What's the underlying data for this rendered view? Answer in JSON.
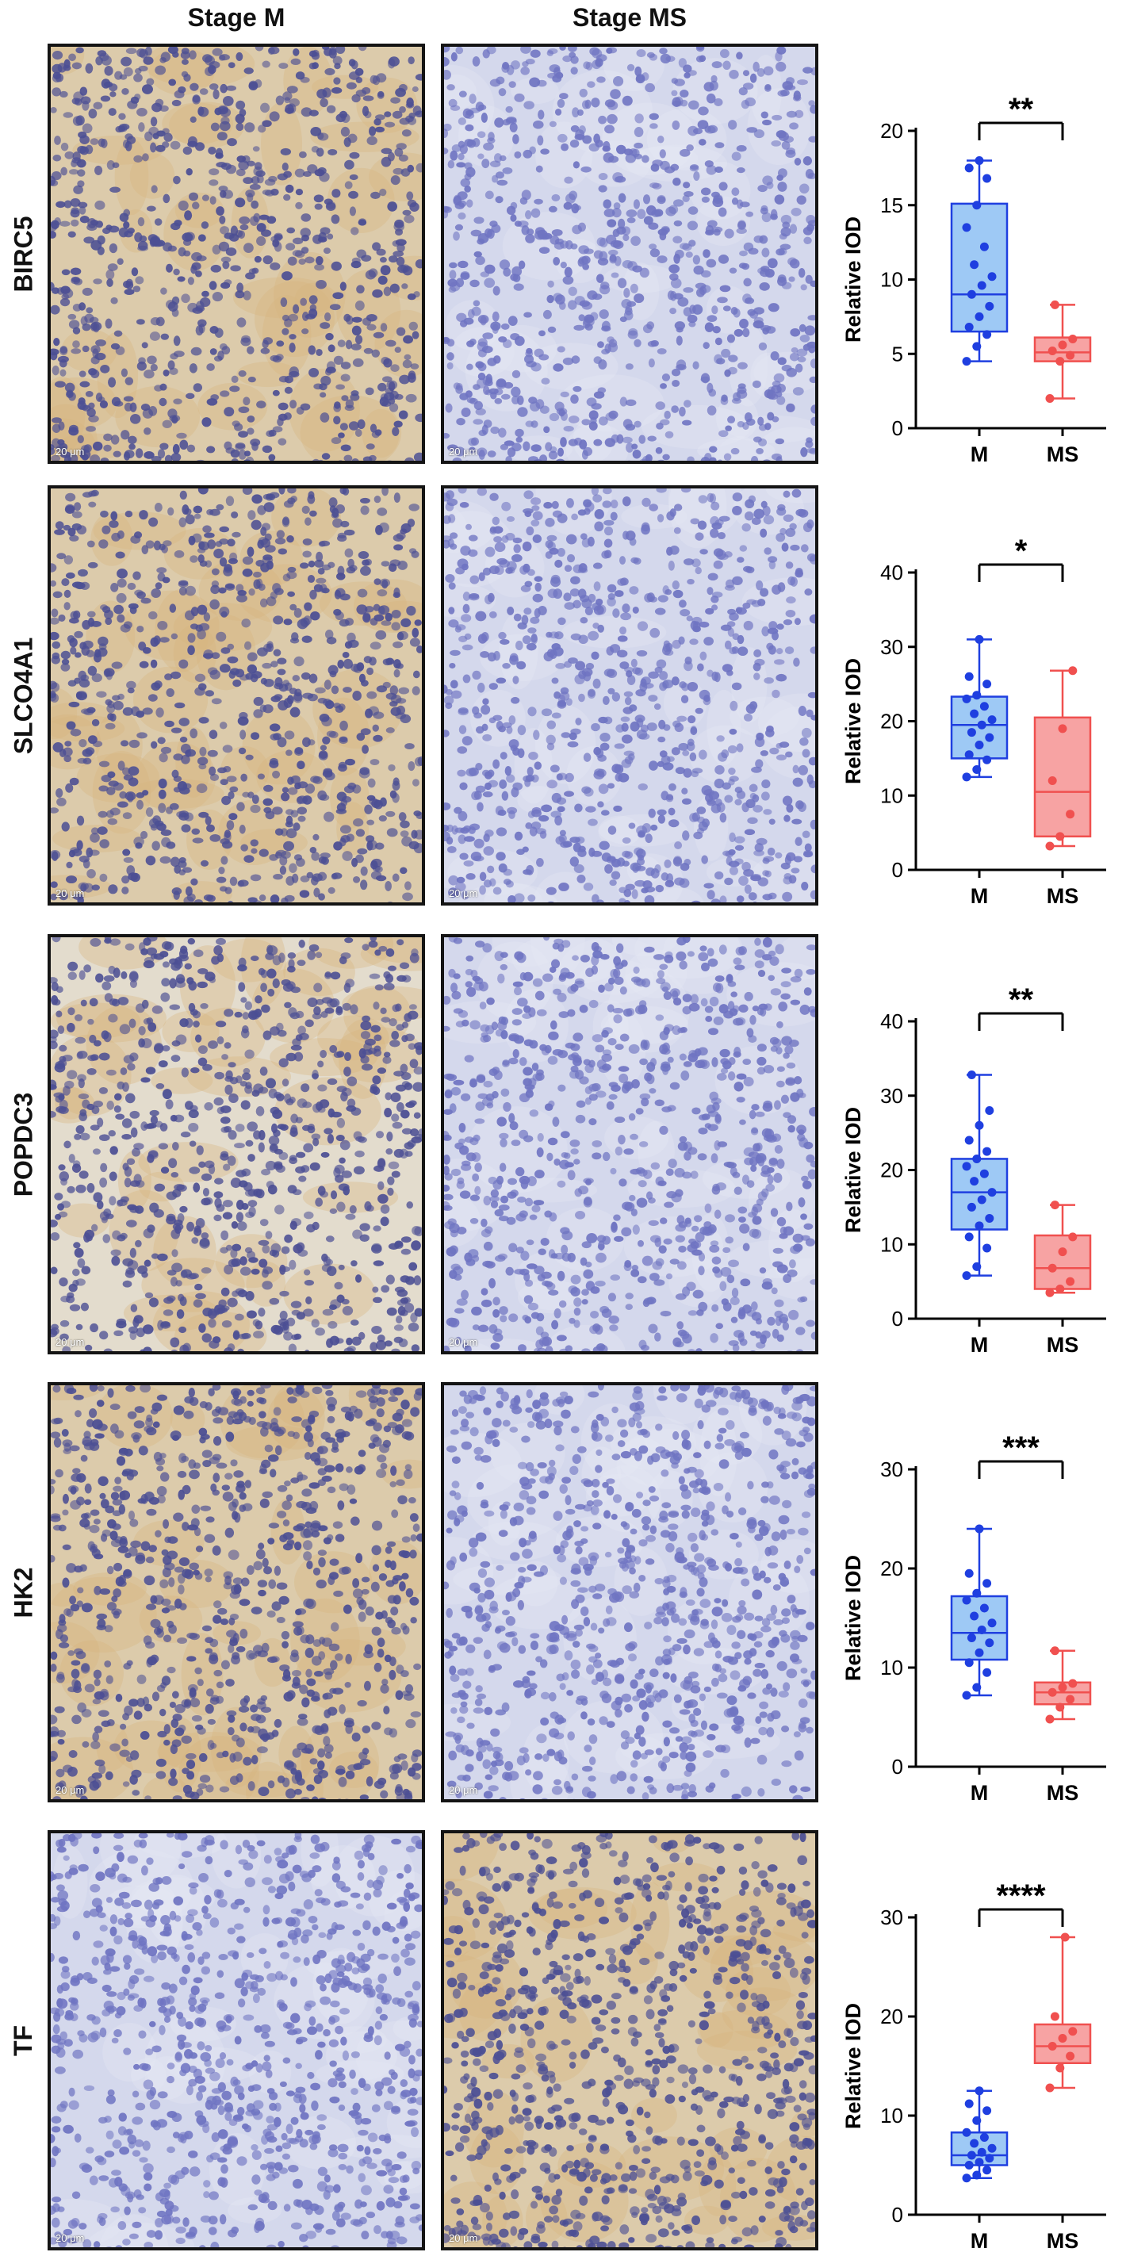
{
  "column_headers": [
    "Stage M",
    "Stage MS"
  ],
  "scale_bar_text": "20 μm",
  "colors": {
    "M": "#1f3fe0",
    "M_fill": "#9ec9f5",
    "MS": "#f0504f",
    "MS_fill": "#f7a3a3",
    "nuclei": "#5a63b8",
    "stroma_brown": "#c9a36b",
    "stroma_blue": "#cdd3ea"
  },
  "rows": [
    {
      "label": "BIRC5",
      "stain_M": "brown",
      "stain_MS": "blue"
    },
    {
      "label": "SLCO4A1",
      "stain_M": "brown",
      "stain_MS": "blue"
    },
    {
      "label": "POPDC3",
      "stain_M": "light-brown",
      "stain_MS": "blue"
    },
    {
      "label": "HK2",
      "stain_M": "brown",
      "stain_MS": "blue"
    },
    {
      "label": "TF",
      "stain_M": "blue",
      "stain_MS": "brown"
    }
  ],
  "chart_data": [
    {
      "type": "box",
      "gene": "BIRC5",
      "ylabel": "Relative IOD",
      "ylim": [
        0,
        20
      ],
      "yticks": [
        0,
        5,
        10,
        15,
        20
      ],
      "categories": [
        "M",
        "MS"
      ],
      "significance": "**",
      "boxes": [
        {
          "name": "M",
          "min": 4.5,
          "q1": 6.5,
          "median": 9.0,
          "q3": 15.1,
          "max": 18.0,
          "points": [
            4.5,
            5.5,
            6.3,
            6.8,
            7.5,
            8.2,
            9.0,
            9.6,
            10.2,
            11.0,
            12.2,
            13.5,
            15.0,
            16.8,
            17.5,
            18.0
          ]
        },
        {
          "name": "MS",
          "min": 2.0,
          "q1": 4.5,
          "median": 5.1,
          "q3": 6.1,
          "max": 8.3,
          "points": [
            2.0,
            4.5,
            4.9,
            5.2,
            5.6,
            6.0,
            8.3
          ]
        }
      ]
    },
    {
      "type": "box",
      "gene": "SLCO4A1",
      "ylabel": "Relative IOD",
      "ylim": [
        0,
        40
      ],
      "yticks": [
        0,
        10,
        20,
        30,
        40
      ],
      "categories": [
        "M",
        "MS"
      ],
      "significance": "*",
      "boxes": [
        {
          "name": "M",
          "min": 12.5,
          "q1": 15.0,
          "median": 19.5,
          "q3": 23.3,
          "max": 31.0,
          "points": [
            12.5,
            13.5,
            14.8,
            15.5,
            16.8,
            17.8,
            18.5,
            19.5,
            20.2,
            21.0,
            22.0,
            23.0,
            23.5,
            25.0,
            26.0,
            31.0
          ]
        },
        {
          "name": "MS",
          "min": 3.2,
          "q1": 4.5,
          "median": 10.5,
          "q3": 20.5,
          "max": 26.8,
          "points": [
            3.2,
            4.5,
            7.5,
            12.0,
            19.0,
            26.8
          ]
        }
      ]
    },
    {
      "type": "box",
      "gene": "POPDC3",
      "ylabel": "Relative IOD",
      "ylim": [
        0,
        40
      ],
      "yticks": [
        0,
        10,
        20,
        30,
        40
      ],
      "categories": [
        "M",
        "MS"
      ],
      "significance": "**",
      "boxes": [
        {
          "name": "M",
          "min": 5.8,
          "q1": 12.0,
          "median": 17.0,
          "q3": 21.5,
          "max": 32.8,
          "points": [
            5.8,
            7.0,
            9.5,
            11.0,
            12.5,
            13.5,
            15.0,
            16.0,
            17.0,
            18.5,
            19.5,
            20.5,
            21.5,
            22.5,
            24.0,
            26.0,
            28.0,
            32.8
          ]
        },
        {
          "name": "MS",
          "min": 3.5,
          "q1": 4.0,
          "median": 6.8,
          "q3": 11.2,
          "max": 15.3,
          "points": [
            3.5,
            4.0,
            5.0,
            6.8,
            9.0,
            11.0,
            15.3
          ]
        }
      ]
    },
    {
      "type": "box",
      "gene": "HK2",
      "ylabel": "Relative IOD",
      "ylim": [
        0,
        30
      ],
      "yticks": [
        0,
        10,
        20,
        30
      ],
      "categories": [
        "M",
        "MS"
      ],
      "significance": "***",
      "boxes": [
        {
          "name": "M",
          "min": 7.2,
          "q1": 10.8,
          "median": 13.5,
          "q3": 17.2,
          "max": 24.0,
          "points": [
            7.2,
            8.0,
            9.5,
            10.5,
            11.5,
            12.5,
            13.0,
            13.8,
            14.5,
            15.2,
            16.0,
            16.8,
            17.5,
            18.5,
            19.5,
            24.0
          ]
        },
        {
          "name": "MS",
          "min": 4.8,
          "q1": 6.3,
          "median": 7.5,
          "q3": 8.5,
          "max": 11.7,
          "points": [
            4.8,
            6.0,
            6.8,
            7.5,
            8.0,
            8.4,
            11.7
          ]
        }
      ]
    },
    {
      "type": "box",
      "gene": "TF",
      "ylabel": "Relative IOD",
      "ylim": [
        0,
        30
      ],
      "yticks": [
        0,
        10,
        20,
        30
      ],
      "categories": [
        "M",
        "MS"
      ],
      "significance": "****",
      "boxes": [
        {
          "name": "M",
          "min": 3.7,
          "q1": 5.0,
          "median": 6.0,
          "q3": 8.3,
          "max": 12.5,
          "points": [
            3.7,
            4.0,
            4.5,
            5.0,
            5.3,
            5.7,
            6.0,
            6.3,
            6.7,
            7.2,
            7.8,
            8.3,
            9.5,
            10.5,
            11.2,
            12.5
          ]
        },
        {
          "name": "MS",
          "min": 12.8,
          "q1": 15.3,
          "median": 17.0,
          "q3": 19.2,
          "max": 28.0,
          "points": [
            12.8,
            14.8,
            16.0,
            17.0,
            17.8,
            18.5,
            20.0,
            28.0
          ]
        }
      ]
    }
  ]
}
